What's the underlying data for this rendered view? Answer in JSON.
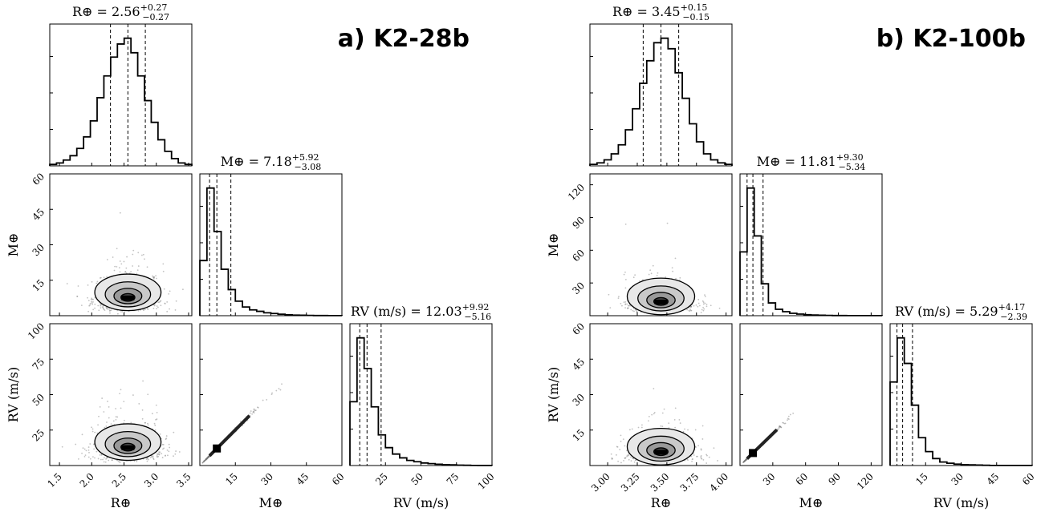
{
  "chart_data": [
    {
      "type": "corner",
      "panel_title": "a) K2-28b",
      "params": [
        {
          "symbol": "R",
          "tex_sub": "⊕",
          "label": "R⊕",
          "summary_prefix": "R⊕ = ",
          "median": "2.56",
          "plus": "+0.27",
          "minus": "−0.27",
          "range": [
            1.35,
            3.55
          ],
          "ticks": [
            1.5,
            2.0,
            2.5,
            3.0,
            3.5
          ],
          "tick_labels": [
            "1.5",
            "2.0",
            "2.5",
            "3.0",
            "3.5"
          ],
          "quantiles": [
            2.29,
            2.56,
            2.83
          ],
          "hist": [
            1,
            2,
            4,
            7,
            12,
            20,
            31,
            47,
            62,
            75,
            84,
            88,
            78,
            62,
            45,
            30,
            18,
            10,
            5,
            2,
            1
          ]
        },
        {
          "symbol": "M",
          "tex_sub": "⊕",
          "label": "M⊕",
          "summary_prefix": "M⊕ = ",
          "median": "7.18",
          "plus": "+5.92",
          "minus": "−3.08",
          "range": [
            0,
            60
          ],
          "ticks": [
            15,
            30,
            45,
            60
          ],
          "tick_labels": [
            "15",
            "30",
            "45",
            "60"
          ],
          "quantiles": [
            4.1,
            7.18,
            13.1
          ],
          "hist": [
            38,
            88,
            58,
            32,
            18,
            10,
            6,
            4,
            3,
            2,
            1.5,
            1,
            0.6,
            0.4,
            0.3,
            0.2,
            0.1,
            0.1,
            0.05,
            0.05
          ]
        },
        {
          "symbol": "RV",
          "tex_sub": "",
          "label": "RV (m/s)",
          "summary_prefix": "RV (m/s) = ",
          "median": "12.03",
          "plus": "+9.92",
          "minus": "−5.16",
          "range": [
            0,
            100
          ],
          "ticks": [
            25,
            50,
            75,
            100
          ],
          "tick_labels": [
            "25",
            "50",
            "75",
            "100"
          ],
          "quantiles": [
            6.9,
            12.03,
            21.95
          ],
          "hist": [
            50,
            100,
            76,
            46,
            24,
            14,
            9,
            6,
            4,
            3,
            2,
            1.5,
            1,
            0.7,
            0.5,
            0.3,
            0.2,
            0.1,
            0.05,
            0.05
          ]
        }
      ]
    },
    {
      "type": "corner",
      "panel_title": "b) K2-100b",
      "params": [
        {
          "symbol": "R",
          "tex_sub": "⊕",
          "label": "R⊕",
          "summary_prefix": "R⊕ = ",
          "median": "3.45",
          "plus": "+0.15",
          "minus": "−0.15",
          "range": [
            2.85,
            4.05
          ],
          "ticks": [
            3.0,
            3.25,
            3.5,
            3.75,
            4.0
          ],
          "tick_labels": [
            "3.00",
            "3.25",
            "3.50",
            "3.75",
            "4.00"
          ],
          "quantiles": [
            3.3,
            3.45,
            3.6
          ],
          "hist": [
            1,
            2,
            4,
            8,
            14,
            24,
            38,
            55,
            70,
            82,
            85,
            78,
            62,
            45,
            28,
            16,
            8,
            4,
            2,
            1
          ]
        },
        {
          "symbol": "M",
          "tex_sub": "⊕",
          "label": "M⊕",
          "summary_prefix": "M⊕ = ",
          "median": "11.81",
          "plus": "+9.30",
          "minus": "−5.34",
          "range": [
            0,
            130
          ],
          "ticks": [
            30,
            60,
            90,
            120
          ],
          "tick_labels": [
            "30",
            "60",
            "90",
            "120"
          ],
          "quantiles": [
            6.47,
            11.81,
            21.11
          ],
          "hist": [
            40,
            80,
            50,
            20,
            8,
            4,
            2.5,
            1.5,
            1,
            0.6,
            0.4,
            0.3,
            0.2,
            0.1,
            0.1,
            0.05,
            0.05,
            0.05,
            0.05,
            0.05
          ]
        },
        {
          "symbol": "RV",
          "tex_sub": "",
          "label": "RV (m/s)",
          "summary_prefix": "RV (m/s) = ",
          "median": "5.29",
          "plus": "+4.17",
          "minus": "−2.39",
          "range": [
            0,
            60
          ],
          "ticks": [
            15,
            30,
            45,
            60
          ],
          "tick_labels": [
            "15",
            "30",
            "45",
            "60"
          ],
          "quantiles": [
            2.9,
            5.29,
            9.46
          ],
          "hist": [
            36,
            55,
            44,
            26,
            12,
            6,
            3,
            1.5,
            1,
            0.6,
            0.4,
            0.3,
            0.2,
            0.1,
            0.05,
            0.05,
            0.05,
            0.05,
            0.05,
            0.05
          ]
        }
      ]
    }
  ]
}
